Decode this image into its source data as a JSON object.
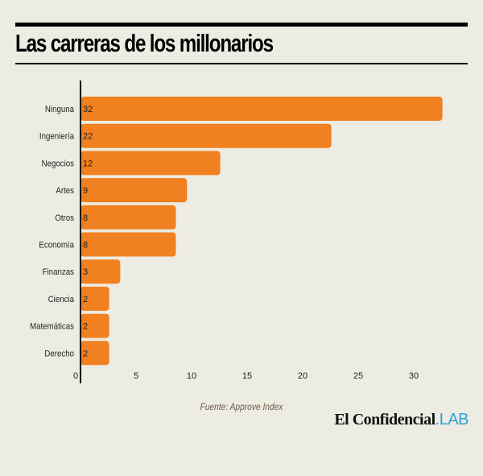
{
  "chart_data": {
    "type": "bar",
    "orientation": "horizontal",
    "title": "Las carreras de los millonarios",
    "categories": [
      "Ninguna",
      "Ingeniería",
      "Negocios",
      "Artes",
      "Otros",
      "Economía",
      "Finanzas",
      "Ciencia",
      "Matemáticas",
      "Derecho"
    ],
    "values": [
      32,
      22,
      12,
      9,
      8,
      8,
      3,
      2,
      2,
      2
    ],
    "xlim": [
      0,
      33
    ],
    "xticks": [
      "0",
      "5",
      "10",
      "15",
      "20",
      "25",
      "30"
    ],
    "grid": false,
    "bar_color": "#f08020",
    "source": "Fuente: Approve Index"
  },
  "logo": {
    "main": "El Confidencial",
    "suffix": ".LAB",
    "suffix_color": "#2a9fd6"
  }
}
